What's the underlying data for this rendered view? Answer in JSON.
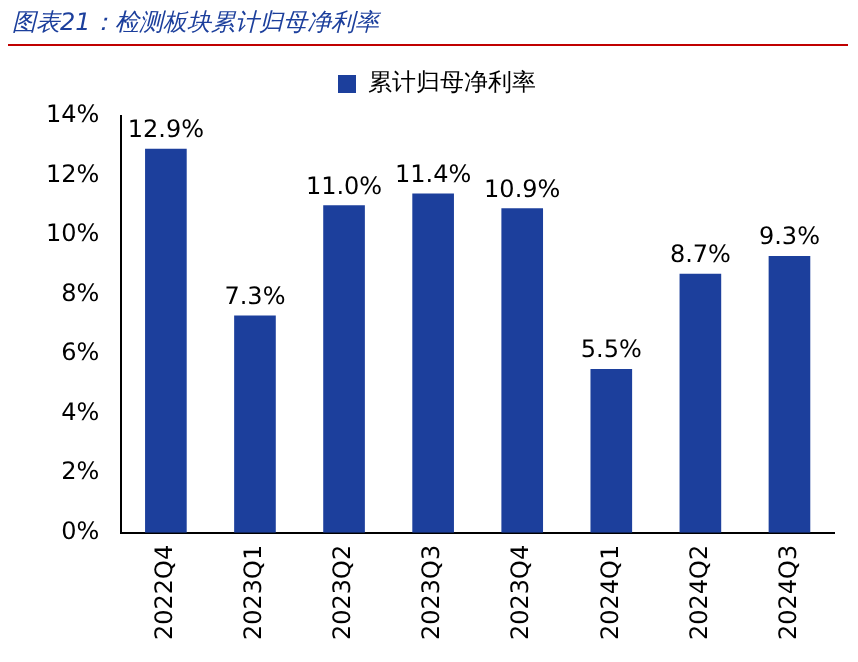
{
  "chart_data": {
    "type": "bar",
    "title": "图表21：检测板块累计归母净利率",
    "categories": [
      "2022Q4",
      "2023Q1",
      "2023Q2",
      "2023Q3",
      "2023Q4",
      "2024Q1",
      "2024Q2",
      "2024Q3"
    ],
    "series": [
      {
        "name": "累计归母净利率",
        "color": "#1c3f9c",
        "values": [
          12.9,
          7.3,
          11.0,
          11.4,
          10.9,
          5.5,
          8.7,
          9.3
        ]
      }
    ],
    "value_labels": [
      "12.9%",
      "7.3%",
      "11.0%",
      "11.4%",
      "10.9%",
      "5.5%",
      "8.7%",
      "9.3%"
    ],
    "ylim": [
      0,
      14
    ],
    "yticks": [
      {
        "value": 0,
        "label": "0%"
      },
      {
        "value": 2,
        "label": "2%"
      },
      {
        "value": 4,
        "label": "4%"
      },
      {
        "value": 6,
        "label": "6%"
      },
      {
        "value": 8,
        "label": "8%"
      },
      {
        "value": 10,
        "label": "10%"
      },
      {
        "value": 12,
        "label": "12%"
      },
      {
        "value": 14,
        "label": "14%"
      }
    ],
    "grid": false,
    "legend": "top"
  }
}
